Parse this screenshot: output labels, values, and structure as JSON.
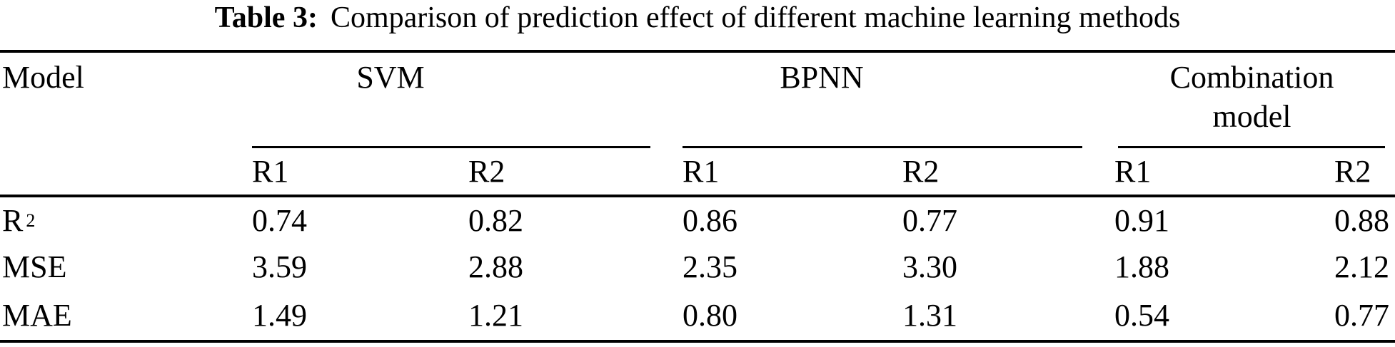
{
  "table": {
    "caption_label": "Table 3:",
    "caption_text": "Comparison of prediction effect of different machine learning methods",
    "model_header": "Model",
    "groups": [
      {
        "label": "SVM",
        "label_line2": ""
      },
      {
        "label": "BPNN",
        "label_line2": ""
      },
      {
        "label": "Combination",
        "label_line2": "model"
      }
    ],
    "sub_headers": [
      "R1",
      "R2",
      "R1",
      "R2",
      "R1",
      "R2"
    ],
    "rows": [
      {
        "label": "R",
        "label_sup": "2",
        "values": [
          "0.74",
          "0.82",
          "0.86",
          "0.77",
          "0.91",
          "0.88"
        ]
      },
      {
        "label": "MSE",
        "label_sup": "",
        "values": [
          "3.59",
          "2.88",
          "2.35",
          "3.30",
          "1.88",
          "2.12"
        ]
      },
      {
        "label": "MAE",
        "label_sup": "",
        "values": [
          "1.49",
          "1.21",
          "0.80",
          "1.31",
          "0.54",
          "0.77"
        ]
      }
    ]
  },
  "chart_data": {
    "type": "table",
    "title": "Table 3: Comparison of prediction effect of different machine learning methods",
    "column_groups": [
      "SVM",
      "BPNN",
      "Combination model"
    ],
    "columns": [
      "Model",
      "SVM R1",
      "SVM R2",
      "BPNN R1",
      "BPNN R2",
      "Combination model R1",
      "Combination model R2"
    ],
    "rows": [
      [
        "R2",
        0.74,
        0.82,
        0.86,
        0.77,
        0.91,
        0.88
      ],
      [
        "MSE",
        3.59,
        2.88,
        2.35,
        3.3,
        1.88,
        2.12
      ],
      [
        "MAE",
        1.49,
        1.21,
        0.8,
        1.31,
        0.54,
        0.77
      ]
    ]
  },
  "colors": {
    "text": "#000000",
    "rule": "#000000",
    "background": "#ffffff"
  }
}
